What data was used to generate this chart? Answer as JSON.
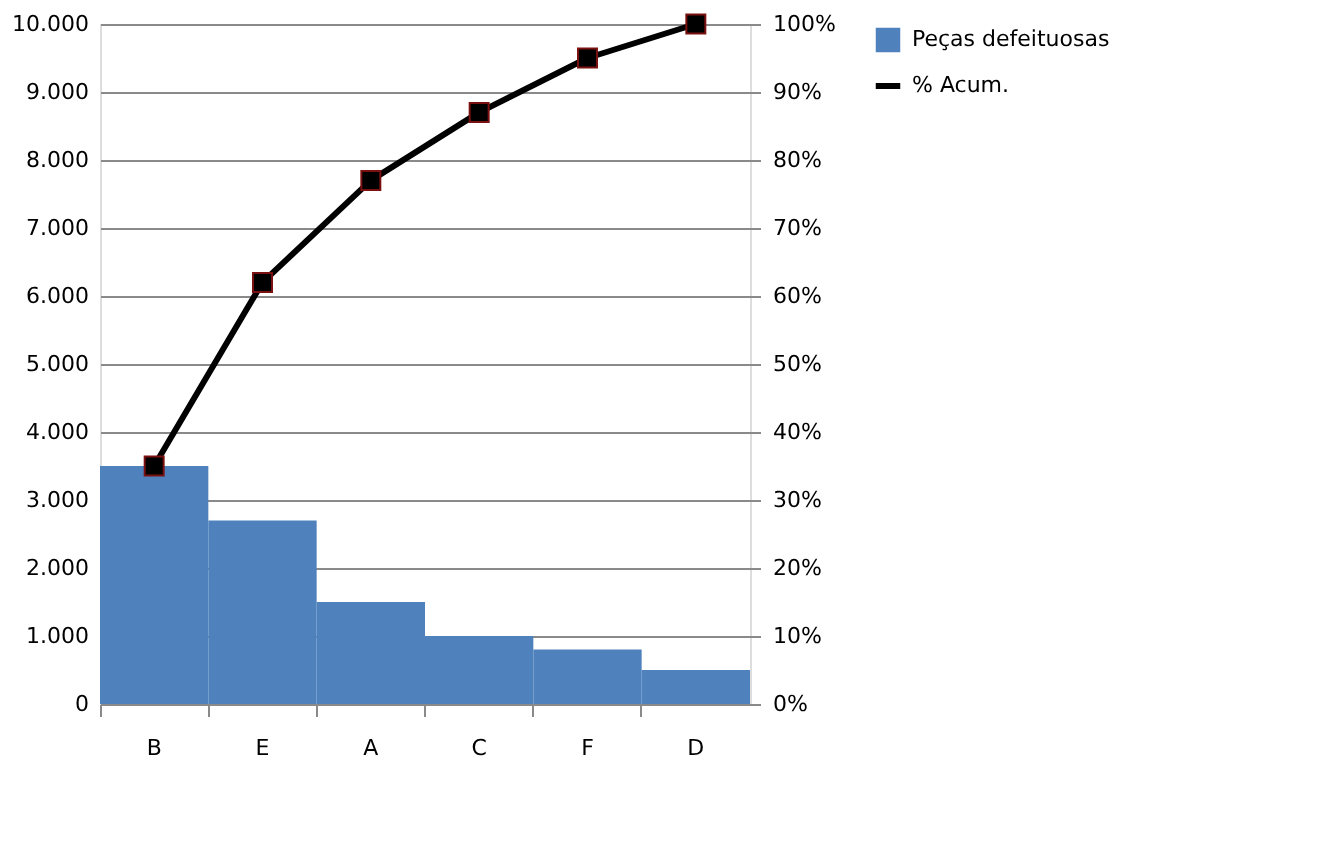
{
  "chart_data": {
    "type": "bar",
    "categories": [
      "B",
      "E",
      "A",
      "C",
      "F",
      "D"
    ],
    "series": [
      {
        "name": "Peças defeituosas",
        "color": "#4f81bd",
        "values": [
          3500,
          2700,
          1500,
          1000,
          800,
          500
        ]
      },
      {
        "name": "% Acum.",
        "type": "line",
        "axis": "y2",
        "color": "#000000",
        "marker": "square",
        "values": [
          35,
          62,
          77,
          87,
          95,
          100
        ]
      }
    ],
    "ylim": [
      0,
      10000
    ],
    "yticks": [
      0,
      {
        "value": 1000,
        "label": "1.000"
      },
      {
        "value": 2000,
        "label": "2.000"
      },
      {
        "value": 3000,
        "label": "3.000"
      },
      {
        "value": 4000,
        "label": "4.000"
      },
      {
        "value": 5000,
        "label": "5.000"
      },
      {
        "value": 6000,
        "label": "6.000"
      },
      {
        "value": 7000,
        "label": "7.000"
      },
      {
        "value": 8000,
        "label": "8.000"
      },
      {
        "value": 9000,
        "label": "9.000"
      },
      {
        "value": 10000,
        "label": "10.000"
      }
    ],
    "y2lim": [
      0,
      100
    ],
    "y2ticks": [
      {
        "value": 0,
        "label": "0%"
      },
      {
        "value": 10,
        "label": "10%"
      },
      {
        "value": 20,
        "label": "20%"
      },
      {
        "value": 30,
        "label": "30%"
      },
      {
        "value": 40,
        "label": "40%"
      },
      {
        "value": 50,
        "label": "50%"
      },
      {
        "value": 60,
        "label": "60%"
      },
      {
        "value": 70,
        "label": "70%"
      },
      {
        "value": 80,
        "label": "80%"
      },
      {
        "value": 90,
        "label": "90%"
      },
      {
        "value": 100,
        "label": "100%"
      }
    ],
    "grid": "y",
    "legend": "right"
  }
}
